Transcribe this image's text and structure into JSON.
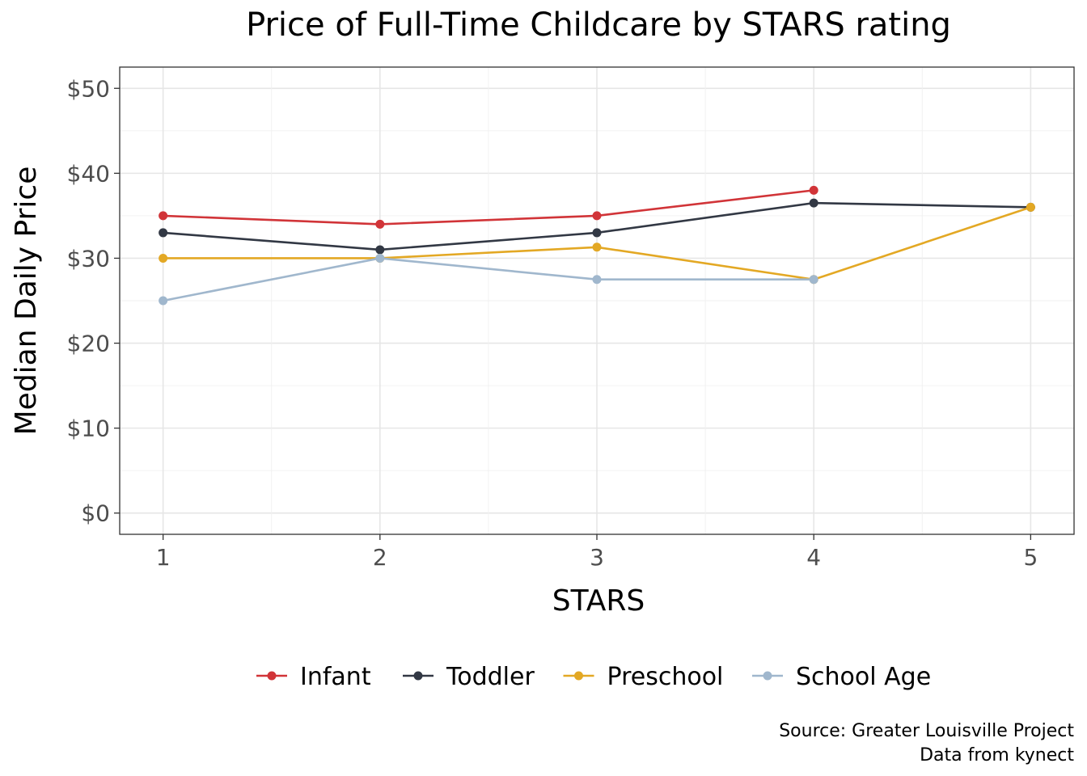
{
  "chart_data": {
    "type": "line",
    "title": "Price of Full-Time Childcare by STARS rating",
    "xlabel": "STARS",
    "ylabel": "Median Daily Price",
    "x": [
      1,
      2,
      3,
      4,
      5
    ],
    "x_tick_labels": [
      "1",
      "2",
      "3",
      "4",
      "5"
    ],
    "xlim": [
      0.8,
      5.2
    ],
    "ylim": [
      -2.5,
      52.5
    ],
    "y_ticks": [
      0,
      10,
      20,
      30,
      40,
      50
    ],
    "y_tick_labels": [
      "$0",
      "$10",
      "$20",
      "$30",
      "$40",
      "$50"
    ],
    "grid": true,
    "legend_position": "bottom",
    "series": [
      {
        "name": "Infant",
        "color": "#d13438",
        "values": [
          35,
          34,
          35,
          38,
          null
        ]
      },
      {
        "name": "Toddler",
        "color": "#323844",
        "values": [
          33,
          31,
          33,
          36.5,
          36
        ]
      },
      {
        "name": "Preschool",
        "color": "#e3a824",
        "values": [
          30,
          30,
          31.3,
          27.5,
          36
        ]
      },
      {
        "name": "School Age",
        "color": "#a0b7cd",
        "values": [
          25,
          30,
          27.5,
          27.5,
          null
        ]
      }
    ],
    "caption": [
      "Source: Greater Louisville Project",
      "Data from kynect"
    ]
  }
}
